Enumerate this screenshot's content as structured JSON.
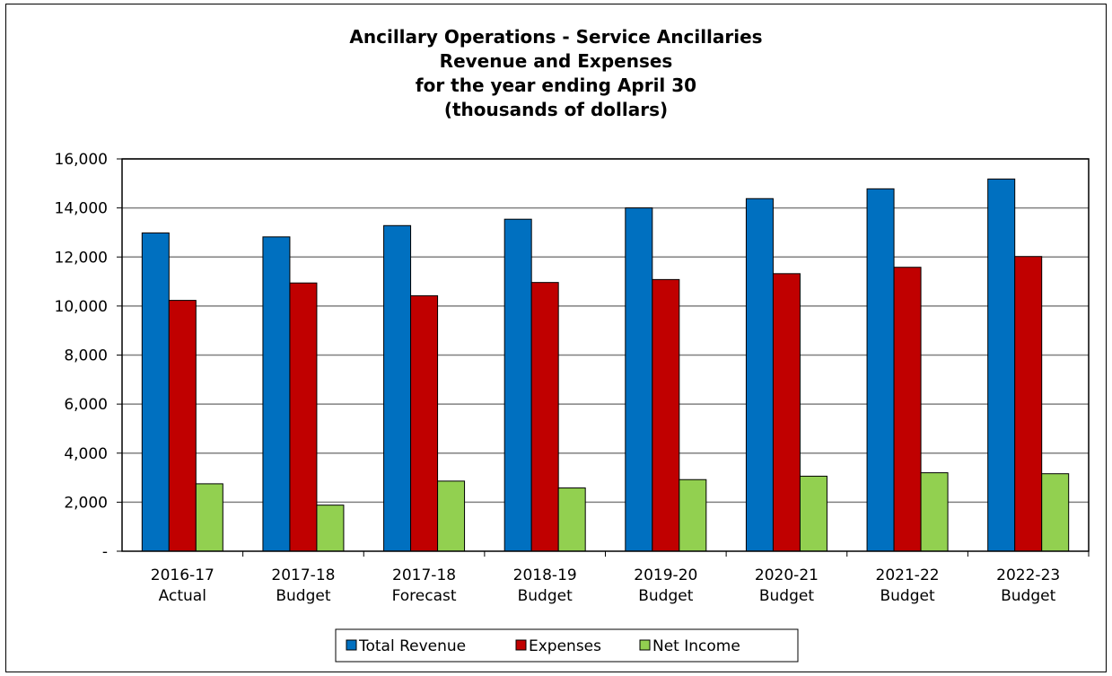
{
  "chart_data": {
    "type": "bar",
    "title": [
      "Ancillary Operations - Service Ancillaries",
      "Revenue and Expenses",
      "for the year ending April 30",
      "(thousands of dollars)"
    ],
    "categories": [
      [
        "2016-17",
        "Actual"
      ],
      [
        "2017-18",
        "Budget"
      ],
      [
        "2017-18",
        "Forecast"
      ],
      [
        "2018-19",
        "Budget"
      ],
      [
        "2019-20",
        "Budget"
      ],
      [
        "2020-21",
        "Budget"
      ],
      [
        "2021-22",
        "Budget"
      ],
      [
        "2022-23",
        "Budget"
      ]
    ],
    "series": [
      {
        "name": "Total Revenue",
        "color": "#0070C0",
        "values": [
          12980,
          12820,
          13280,
          13540,
          14000,
          14380,
          14780,
          15180
        ]
      },
      {
        "name": "Expenses",
        "color": "#C00000",
        "values": [
          10230,
          10940,
          10420,
          10960,
          11080,
          11320,
          11580,
          12020
        ]
      },
      {
        "name": "Net Income",
        "color": "#92D050",
        "values": [
          2750,
          1880,
          2860,
          2580,
          2920,
          3060,
          3200,
          3160
        ]
      }
    ],
    "ylim": [
      0,
      16000
    ],
    "yticks": [
      0,
      2000,
      4000,
      6000,
      8000,
      10000,
      12000,
      14000,
      16000
    ],
    "ytick_labels": [
      "-",
      "2,000",
      "4,000",
      "6,000",
      "8,000",
      "10,000",
      "12,000",
      "14,000",
      "16,000"
    ],
    "grid": true,
    "legend_position": "bottom"
  }
}
